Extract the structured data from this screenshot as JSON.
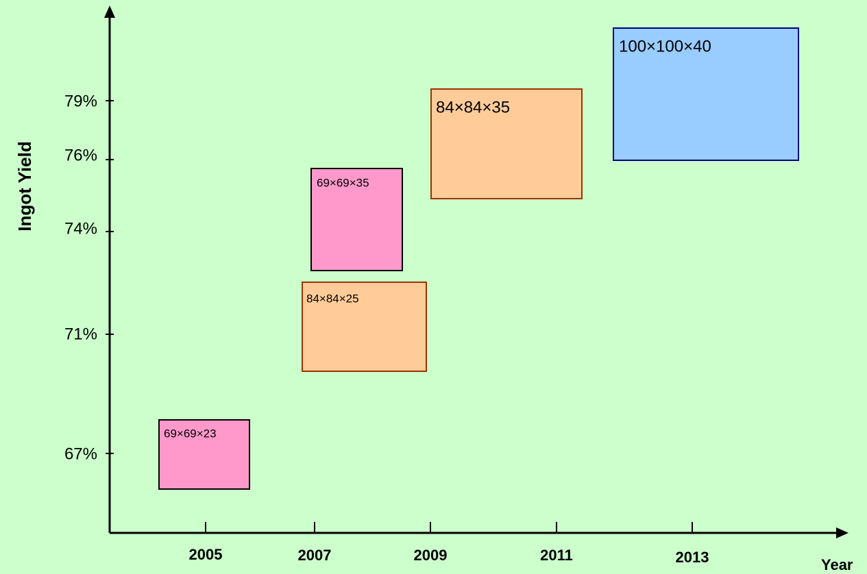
{
  "y_axis": {
    "label": "Ingot  Yield",
    "ticks": [
      "79%",
      "76%",
      "74%",
      "71%",
      "67%"
    ]
  },
  "x_axis": {
    "label": "Year",
    "ticks": [
      "2005",
      "2007",
      "2009",
      "2011",
      "2013"
    ]
  },
  "boxes": [
    {
      "label": "69×69×23"
    },
    {
      "label": "84×84×25"
    },
    {
      "label": "69×69×35"
    },
    {
      "label": "84×84×35"
    },
    {
      "label": "100×100×40"
    }
  ]
}
